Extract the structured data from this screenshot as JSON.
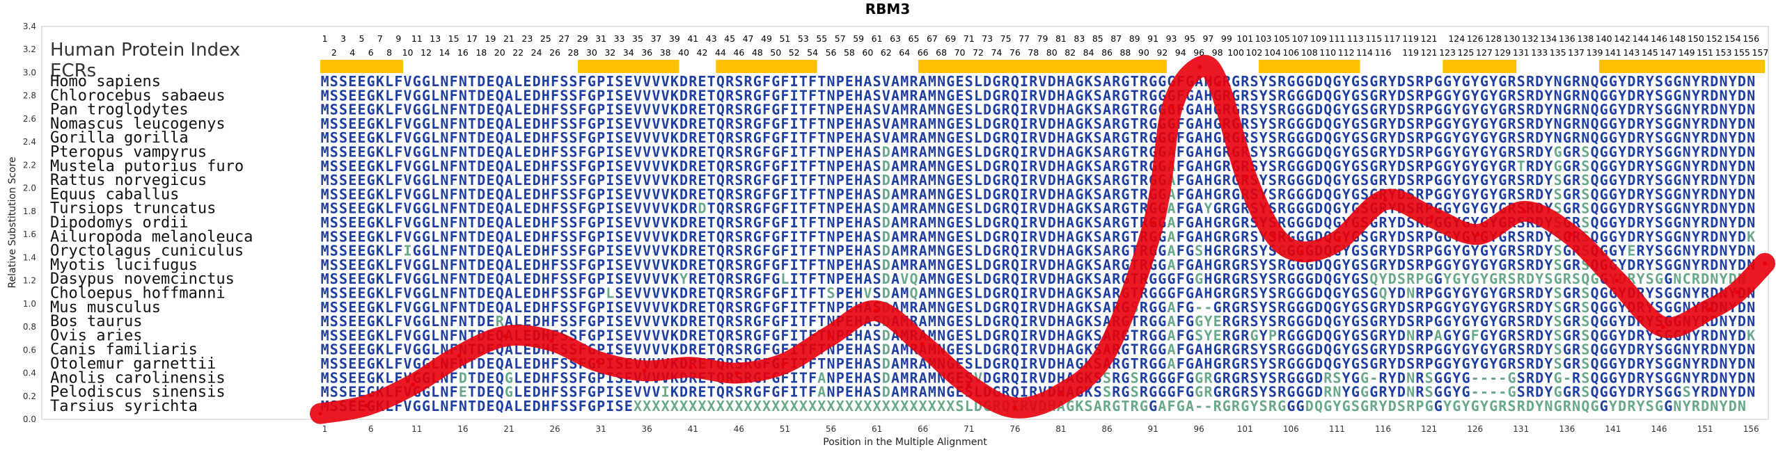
{
  "chart_data": {
    "type": "line",
    "title": "RBM3",
    "xlabel": "Position in the Multiple Alignment",
    "ylabel": "Relative Substitution Score",
    "xlim": [
      1,
      157
    ],
    "ylim": [
      0,
      3.4
    ],
    "yticks": [
      "0.0",
      "0.2",
      "0.4",
      "0.6",
      "0.8",
      "1.0",
      "1.2",
      "1.4",
      "1.6",
      "1.8",
      "2.0",
      "2.2",
      "2.4",
      "2.6",
      "2.8",
      "3.0",
      "3.2",
      "3.4"
    ],
    "xticks": [
      "1",
      "6",
      "11",
      "16",
      "21",
      "26",
      "31",
      "36",
      "41",
      "46",
      "51",
      "56",
      "61",
      "66",
      "71",
      "76",
      "81",
      "86",
      "91",
      "96",
      "101",
      "106",
      "111",
      "116",
      "121",
      "126",
      "131",
      "136",
      "141",
      "146",
      "151",
      "156"
    ],
    "grid": false,
    "series": [
      {
        "color": "#e8000b",
        "x": [
          1,
          6,
          11,
          16,
          21,
          26,
          31,
          36,
          41,
          46,
          51,
          56,
          61,
          66,
          71,
          76,
          81,
          86,
          91,
          93,
          96,
          98,
          101,
          104,
          107,
          111,
          116,
          121,
          126,
          131,
          136,
          141,
          146,
          151,
          154,
          157
        ],
        "y": [
          0.05,
          0.12,
          0.3,
          0.55,
          0.72,
          0.68,
          0.5,
          0.42,
          0.45,
          0.4,
          0.48,
          0.72,
          0.94,
          0.65,
          0.3,
          0.1,
          0.22,
          0.6,
          1.7,
          2.7,
          3.05,
          2.9,
          2.1,
          1.6,
          1.45,
          1.55,
          1.9,
          1.75,
          1.6,
          1.8,
          1.6,
          1.2,
          0.8,
          0.95,
          1.1,
          1.35
        ]
      }
    ]
  },
  "panel": {
    "header": "Human Protein Index",
    "ecr_label": "ECRs",
    "index_top": [
      1,
      3,
      5,
      7,
      9,
      11,
      13,
      15,
      17,
      19,
      21,
      23,
      25,
      27,
      29,
      31,
      33,
      35,
      37,
      39,
      41,
      43,
      45,
      47,
      49,
      51,
      53,
      55,
      57,
      59,
      61,
      63,
      65,
      67,
      69,
      71,
      73,
      75,
      77,
      79,
      81,
      83,
      85,
      87,
      89,
      91,
      93,
      95,
      97,
      99,
      101,
      103,
      105,
      107,
      109,
      111,
      113,
      115,
      117,
      119,
      121,
      124,
      126,
      128,
      130,
      132,
      134,
      136,
      138,
      140,
      142,
      144,
      146,
      148,
      150,
      152,
      154,
      156
    ],
    "index_bottom": [
      2,
      4,
      6,
      8,
      10,
      12,
      14,
      16,
      18,
      20,
      22,
      24,
      26,
      28,
      30,
      32,
      34,
      36,
      38,
      40,
      42,
      44,
      46,
      48,
      50,
      52,
      54,
      56,
      58,
      60,
      62,
      64,
      66,
      68,
      70,
      72,
      74,
      76,
      78,
      80,
      82,
      84,
      86,
      88,
      90,
      92,
      94,
      96,
      98,
      100,
      102,
      104,
      106,
      108,
      110,
      112,
      114,
      116,
      119,
      121,
      123,
      125,
      127,
      129,
      131,
      133,
      135,
      137,
      139,
      141,
      143,
      145,
      147,
      149,
      151,
      153,
      155,
      157
    ],
    "ecr_color": "#ffc000",
    "ecrs": [
      [
        1,
        9
      ],
      [
        29,
        39
      ],
      [
        44,
        54
      ],
      [
        66,
        92
      ],
      [
        103,
        113
      ],
      [
        123,
        130
      ],
      [
        140,
        157
      ]
    ],
    "seq_color": "#1f3fa0",
    "seq_variant_color": "#6aa88a",
    "species": [
      {
        "name": "Homo sapiens",
        "seq": "MSSEEGKLFVGGLNFNTDEQALEDHFSSFGPISEVVVVKDRETQRSRGFGFITFTNPEHASVAMRAMNGESLDGRQIRVDHAGKSARGTRGGGFGAHGRGRSYSRGGGDQGYGSGRYDSRPGGYGYGYGRSRDYNGRNQGGYDRYSGGNYRDNYDN"
      },
      {
        "name": "Chlorocebus sabaeus",
        "seq": "MSSEEGKLFVGGLNFNTDEQALEDHFSSFGPISEVVVVKDRETQRSRGFGFITFTNPEHASVAMRAMNGESLDGRQIRVDHAGKSARGTRGGGFGAHGRGRSYSRGGGDQGYGSGRYDSRPGGYGYGYGRSRDYNGRNQGGYDRYSGGNYRDNYDN"
      },
      {
        "name": "Pan troglodytes",
        "seq": "MSSEEGKLFVGGLNFNTDEQALEDHFSSFGPISEVVVVKDRETQRSRGFGFITFTNPEHASVAMRAMNGESLDGRQIRVDHAGKSARGTRGGGFGAHGRGRSYSRGGGDQGYGSGRYDSRPGGYGYGYGRSRDYNGRNQGGYDRYSGGNYRDNYDN"
      },
      {
        "name": "Nomascus leucogenys",
        "seq": "MSSEEGKLFVGGLNFNTDEQALEDHFSSFGPISEVVVVKDRETQRSRGFGFITFTNPEHASVAMRAMNGESLDGRQIRVDHAGKSARGTRGGGFGAHGRGRSYSRGGGDQGYGSGRYDSRPGGYGYGYGRSRDYNGRNQGGYDRYSGGNYRDNYDN"
      },
      {
        "name": "Gorilla gorilla",
        "seq": "MSSEEGKLFVGGLNFNTDEQALEDHFSSFGPISEVVVVKDRETQRSRGFGFITFTNPEHASVAMRAMNGESLDGRQIRVDHAGKSARGTRGGGFGAHGRGRSYSRGGGDQGYGSGRYDSRPGGYGYGYGRSRDYNGRNQGGYDRYSGGNYRDNYDN"
      },
      {
        "name": "Pteropus vampyrus",
        "seq": "MSSEEGKLFVGGLNFNTDEQALEDHFSSFGPISEVVVVKDRETQRSRGFGFITFTNPEHASDAMRAMNGESLDGRQIRVDHAGKSARGTRGGAFGAHGRGRSYSRGGGDQGYGSGRYDSRPGGYGYGYGRSRDYGGRSQGGYDRYSGGNYRDNYDN"
      },
      {
        "name": "Mustela putorius furo",
        "seq": "MSSEEGKLFVGGLNFNTDEQALEDHFSSFGPISEVVVVKDRETQRSRGFGFITFTNPEHASDAMRAMNGESLDGRQIRVDHAGKSARGTRGGAFGAHGRGRSYSRGGGDQGYGSGRYDSRPGGYGYGYGRTRDYGGRSQGGYDRYSGGNYRDNYDN"
      },
      {
        "name": "Rattus norvegicus",
        "seq": "MSSEEGKLFVGGLNFNTDEQALEDHFSSFGPISEVVVVKDRETQRSRGFGFITFTNPEHASDAMRAMNGESLDGRQIRVDHAGKSARGTRGGAFGAHGRGRSYSRGGGDQGYGSGRYDSRPGGYGYGYGRSRDYSGRSQGGYDRYSGGNYRDNYDN"
      },
      {
        "name": "Equus caballus",
        "seq": "MSSEEGKLFVGGLNFNTDEQALEDHFSSFGPISEVVVVKDRETQRSRGFGFITFTNPEHASDAMRAMNGESLDGRQIRVDHAGKSARGTRGGAFGAHGRGRSYSRGGGDQGYGSGRYDSRPGGYGYGYGRSRDYSGRSQGGYDRYSGGNYRDNYDN"
      },
      {
        "name": "Tursiops truncatus",
        "seq": "MSSEEGKLFVGGLNFNTDEQALEDHFSSFGPISEVVVVKDRDTQRSRGFGFITFTNPEHASDAMRAMNGESLDGRQIRVDHAGKSARGTRGGAFGAYGRGRSYSRGGGDQGYGSGRYDSRPGGYGYGYGRSRDYSGRSQGGYDRYSGGNYRDNYDN"
      },
      {
        "name": "Dipodomys ordii",
        "seq": "MSSEEGKLFVGGLNFNTDEQALEDHFSSFGPISEVVVVKDRETQRSRGFGFITFTNPEHASDAMRAMNGESLDGRQIRVDHAGKSARGTRGGAFGAHGRGRSYSRGGGDQGYGSGRYDSRPGGYGYGYGRSRDYSGRSQGGYDRYSGGNYRDNYDN"
      },
      {
        "name": "Ailuropoda melanoleuca",
        "seq": "MSSEEGKLFVGGLNFNTDEQALEDHFSSFGPISEVVVVKDRETQRSRGFGFITFTNPEHASDAMRAMNGESLDGRQIRVDHAGKSARGTRGGAFGAHGRGRSYSRGGGDQGYGSGRYDSRPGGYGYGYGRSRDYSGRSQGGYDRYSGGNYRDNYDK"
      },
      {
        "name": "Oryctolagus cuniculus",
        "seq": "MSSEEGKLFIGGLNFNTDEQALEDHFSSFGPISEVVVVKDRETQRSRGFGFITFTNPEHASDAMRAMNGESLDGRQIRVDHAGKSARGTRGGAFGSHGRGRSYSGGGGDQGYGSGRYDSRPGGYGYGYGRSRDYSGRSQGGYERYSGGNYRDNYDN"
      },
      {
        "name": "Myotis lucifugus",
        "seq": "MSSEEGKLFVGGLNFNTDEQALEDHFSSFGPISEVVVVKDRETQRSRGFGFITFTNPEHASDAMRAMNGESLDGRQIRVDHAGKSARGTRGGAFGAHGRGRSYSRGGGDQGYGSGRYDSRPGGYGYGYGRSRDYSGRSQGGYDRYSGGNYRDNYDN"
      },
      {
        "name": "Dasypus novemcinctus",
        "seq": "MSSEEGKLFVGGLNFNTDEQALEDHFSSFGPISEVVVVKYRETQRSRGFGLITFTNPEHASDAVQAMNGESLDGRQIRVDHAGKSARGTRGGGFGGHGRGRSYSRGGGDQGYGSQYDSRPGGYGYGYGRSRDYSGRSQGGYDRYSGGNCRDNYDN"
      },
      {
        "name": "Choloepus hoffmanni",
        "seq": "MSSEEGKLFVGGLNFNTDEQALEDHFSSFGPLSEVVVVKDRETQRSRGFGFITFTSPEHVSDAMQAMNGESLDGRQIRVDHAGKSARGTRGGGFGAHGRGRSYSRGGGDQGYGSGQYDNRPGGYGYGYGRSRDYSGRSQGGYDRYSGGNYRDNYDN"
      },
      {
        "name": "Mus musculus",
        "seq": "MSSEEGKLFVGGLNFNTDEQALEDHFSSFGPISEVVVVKDRETQRSRGFGFITFTNPEHASDAMRAMNGESLDGRQIRVDHAGKSARGSRGGAFG--GRGRSYSRGGGDQGYGSGRYDSRPGGYGYGYGRSRDYSGRSQGGYDRYSGGNYRDNYDN"
      },
      {
        "name": "Bos taurus",
        "seq": "MSSEEGKLFVGGLNFNTDERALEDHFSSFGPISEVVVVKDRETQRSRGFGFITFTNPEHASDAMRAMNGESLDGRQIRVDHAGKSARGTRGGAFGGYERGRSYSRGGGDQGYGSGRYDSRPGGYGYGYGRSRDYSGRSQGGYDRYSGGNYRDNYDN"
      },
      {
        "name": "Ovis aries",
        "seq": "MSSEEGKLFVGGLNFNTDEQALEDHFSSFGPISEVVVVKDRETQRSRGFGFITFTNPEHASDAMRAMNGESLDGRQIRVDHAGKSARGTRGGAFGSYERGRGYPRGGGDQGYGSGRYDNRPAGYGFGYGRSRDYSGRSQGGYDRYSGGNYRDNYDK"
      },
      {
        "name": "Canis familiaris",
        "seq": "MSSEEGKLFVGGLNFNTDEQALEDHFSSFGPISEVVVVKDRETQRSRGFGFITFTNPEHASDAMRAMNGESLDGRQIRVDHAGKSARGTRGGAFGAHGRGRSYSRGGGDQGYGSGRYDSRPGGYGYGYGRSRDYSGRSQGGYDRYSGGNYRDNYDN"
      },
      {
        "name": "Otolemur garnettii",
        "seq": "MSSEEGKLFVGGLNFNTDEQALEDHFSSFGPISEVVVVKDRETQRSRGFGFITFTNPEHASDAMRAMNGESLDGRQIRVDHAGKSARGTRGGAFGAHGRGRSYSRGGGDQGYGSGRYDSRPGGYGYGYGRSRDYSGRSQGGYDRYSGGNYRDNYDN"
      },
      {
        "name": "Anolis carolinensis",
        "seq": "MSSEEGKLFVGGLNFDTDEQGLEDHFSSFGPISEVVVVKDRETQRSRGFGFITFANPEHASDAMRAMNGESVDGRQIRVDHAGKSSRGSRGGGFGGRGRGRSYSRGGGDRSYGG-RYDNRSGGYG----GSRDYG-RSQGGYDRYSGGNYRDNYDN"
      },
      {
        "name": "Pelodiscus sinensis",
        "seq": "MSSEEGKLFVGGLNFETDEQGLEDHFSSFGPISEVVVIKDRETQRSRGFGFITFANPEHASDAMRAMNGESLDGRQIRVDHAGKSSRGSRGGGFGGRGRGRSYSRGGGDRNYGGGRYDNRSGGYG----GSRDYGGRSQGGYDRYSGGSYRDNYDN"
      },
      {
        "name": "Tarsius syrichta",
        "seq": "MSSEEGKLFVGGLNFNTDEQALEDHFSSFGPISEXXXXXXXXXXXXXXXXXXXXXXXXXXXXXXXXXXXSLDGRQIRVDHAGKSARGTRGGAFGA--RGRGYSRGGGDQGYGSGRYDSRPGGYGYGYGRSRDYNGRNQGGYDRYSGGNYRDNYDN"
      }
    ]
  }
}
